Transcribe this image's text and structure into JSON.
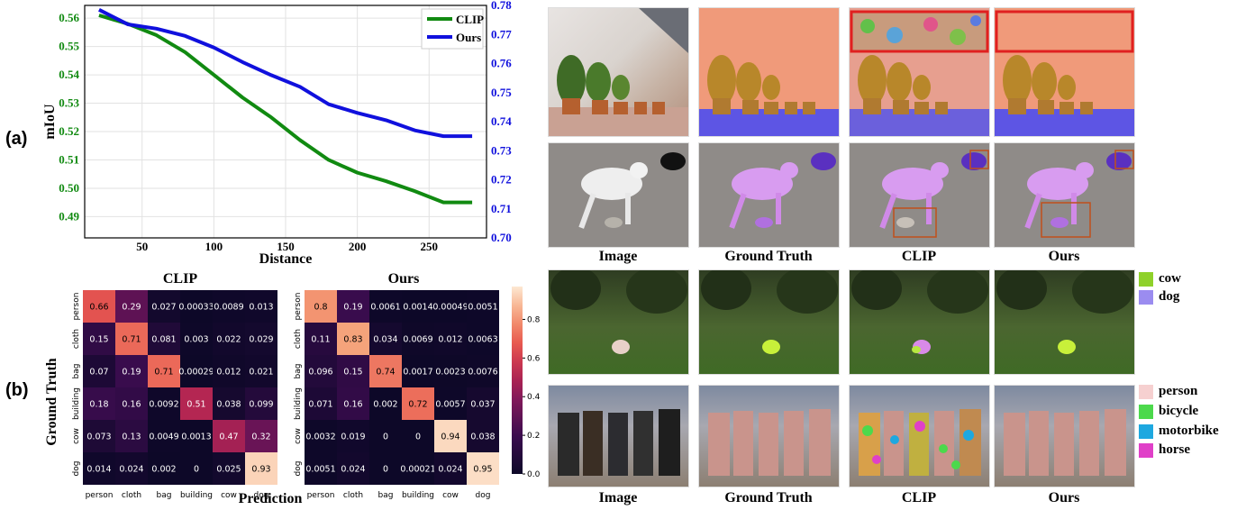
{
  "panel_a_label": "(a)",
  "panel_b_label": "(b)",
  "chart_data": [
    {
      "type": "line",
      "xlabel": "Distance",
      "ylabel": "mIoU",
      "xlim": [
        10,
        290
      ],
      "x_ticks": [
        50,
        100,
        150,
        200,
        250
      ],
      "y_left_lim": [
        0.4825,
        0.5645
      ],
      "y_left_ticks": [
        0.49,
        0.5,
        0.51,
        0.52,
        0.53,
        0.54,
        0.55,
        0.56
      ],
      "y_right_lim": [
        0.7,
        0.78
      ],
      "y_right_ticks": [
        0.7,
        0.71,
        0.72,
        0.73,
        0.74,
        0.75,
        0.76,
        0.77,
        0.78
      ],
      "grid": true,
      "legend_position": "top-right",
      "series": [
        {
          "name": "CLIP",
          "axis": "left",
          "color": "#118a11",
          "x": [
            20,
            40,
            60,
            80,
            100,
            120,
            140,
            160,
            180,
            200,
            220,
            240,
            260,
            280
          ],
          "y": [
            0.561,
            0.558,
            0.554,
            0.548,
            0.54,
            0.532,
            0.525,
            0.517,
            0.51,
            0.5055,
            0.5025,
            0.499,
            0.495,
            0.495
          ]
        },
        {
          "name": "Ours",
          "axis": "right",
          "color": "#1010dd",
          "x": [
            20,
            40,
            60,
            80,
            100,
            120,
            140,
            160,
            180,
            200,
            220,
            240,
            260,
            280
          ],
          "y": [
            0.7785,
            0.7735,
            0.772,
            0.7695,
            0.7655,
            0.7605,
            0.756,
            0.752,
            0.746,
            0.743,
            0.7405,
            0.737,
            0.735,
            0.735
          ]
        }
      ]
    },
    {
      "type": "heatmap",
      "title": "CLIP",
      "rows": [
        "person",
        "cloth",
        "bag",
        "building",
        "cow",
        "dog"
      ],
      "cols": [
        "person",
        "cloth",
        "bag",
        "building",
        "cow",
        "dog"
      ],
      "values": [
        [
          "0.66",
          "0.29",
          "0.027",
          "0.00033",
          "0.0089",
          "0.013"
        ],
        [
          "0.15",
          "0.71",
          "0.081",
          "0.003",
          "0.022",
          "0.029"
        ],
        [
          "0.07",
          "0.19",
          "0.71",
          "0.00029",
          "0.012",
          "0.021"
        ],
        [
          "0.18",
          "0.16",
          "0.0092",
          "0.51",
          "0.038",
          "0.099"
        ],
        [
          "0.073",
          "0.13",
          "0.0049",
          "0.0013",
          "0.47",
          "0.32"
        ],
        [
          "0.014",
          "0.024",
          "0.002",
          "0",
          "0.025",
          "0.93"
        ]
      ]
    },
    {
      "type": "heatmap",
      "title": "Ours",
      "rows": [
        "person",
        "cloth",
        "bag",
        "building",
        "cow",
        "dog"
      ],
      "cols": [
        "person",
        "cloth",
        "bag",
        "building",
        "cow",
        "dog"
      ],
      "values": [
        [
          "0.8",
          "0.19",
          "0.0061",
          "0.0014",
          "0.00049",
          "0.0051"
        ],
        [
          "0.11",
          "0.83",
          "0.034",
          "0.0069",
          "0.012",
          "0.0063"
        ],
        [
          "0.096",
          "0.15",
          "0.74",
          "0.0017",
          "0.0023",
          "0.0076"
        ],
        [
          "0.071",
          "0.16",
          "0.002",
          "0.72",
          "0.0057",
          "0.037"
        ],
        [
          "0.0032",
          "0.019",
          "0",
          "0",
          "0.94",
          "0.038"
        ],
        [
          "0.0051",
          "0.024",
          "0",
          "0.00021",
          "0.024",
          "0.95"
        ]
      ],
      "colorbar_ticks": [
        "0.8",
        "0.6",
        "0.4",
        "0.2",
        "0.0"
      ],
      "colorbar_range": [
        0,
        0.97
      ]
    }
  ],
  "heatmap_labels": {
    "ylabel": "Ground Truth",
    "xlabel": "Prediction"
  },
  "image_grid": {
    "captions_top": [
      "Image",
      "Ground Truth",
      "CLIP",
      "Ours"
    ],
    "captions_bottom": [
      "Image",
      "Ground Truth",
      "CLIP",
      "Ours"
    ]
  },
  "legend_top": [
    {
      "label": "cow",
      "color": "#8fd12a"
    },
    {
      "label": "dog",
      "color": "#9b8cf0"
    }
  ],
  "legend_bottom": [
    {
      "label": "person",
      "color": "#f6d0d0"
    },
    {
      "label": "bicycle",
      "color": "#4cd94c"
    },
    {
      "label": "motorbike",
      "color": "#1ea8e0"
    },
    {
      "label": "horse",
      "color": "#e040c8"
    }
  ]
}
